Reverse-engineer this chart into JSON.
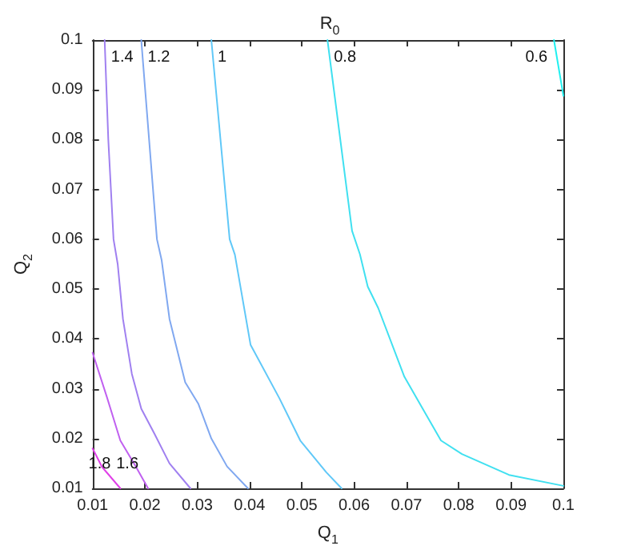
{
  "chart_data": {
    "type": "line",
    "title": "R$_{0}$",
    "xlabel": "Q$_{1}$",
    "ylabel": "Q$_{2}$",
    "xlim": [
      0.01,
      0.1
    ],
    "ylim": [
      0.01,
      0.1
    ],
    "xticks": [
      0.01,
      0.02,
      0.03,
      0.04,
      0.05,
      0.06,
      0.07,
      0.08,
      0.09,
      0.1
    ],
    "yticks": [
      0.01,
      0.02,
      0.03,
      0.04,
      0.05,
      0.06,
      0.07,
      0.08,
      0.09,
      0.1
    ],
    "grid": false,
    "legend": false,
    "marker": "none",
    "line_style": "solid",
    "series": [
      {
        "name": "1.8",
        "color": "#e040e8",
        "x": [
          0.01,
          0.0118,
          0.0153
        ],
        "values": [
          0.018,
          0.0143,
          0.01
        ]
      },
      {
        "name": "1.6",
        "color": "#c060f0",
        "x": [
          0.01,
          0.0128,
          0.0153,
          0.0183,
          0.0206
        ],
        "values": [
          0.0372,
          0.0281,
          0.0196,
          0.0143,
          0.01
        ]
      },
      {
        "name": "1.4",
        "color": "#a080f0",
        "x": [
          0.0287,
          0.0247,
          0.0218,
          0.0193,
          0.0175,
          0.0158,
          0.0148,
          0.014,
          0.013,
          0.0123
        ],
        "values": [
          0.01,
          0.015,
          0.021,
          0.026,
          0.033,
          0.044,
          0.055,
          0.06,
          0.08,
          0.1
        ]
      },
      {
        "name": "1.2",
        "color": "#80a8f0",
        "x": [
          0.0397,
          0.0357,
          0.0327,
          0.0302,
          0.0277,
          0.0247,
          0.0232,
          0.0223,
          0.0193
        ],
        "values": [
          0.01,
          0.0144,
          0.02,
          0.027,
          0.0313,
          0.044,
          0.0558,
          0.06,
          0.1
        ]
      },
      {
        "name": "1",
        "color": "#60c8f8",
        "x": [
          0.0576,
          0.0547,
          0.0497,
          0.0457,
          0.0402,
          0.0372,
          0.0362,
          0.0327
        ],
        "values": [
          0.01,
          0.0132,
          0.0196,
          0.0281,
          0.0388,
          0.0569,
          0.06,
          0.1
        ]
      },
      {
        "name": "0.8",
        "color": "#40e0f0",
        "x": [
          0.1,
          0.0896,
          0.0806,
          0.0766,
          0.0696,
          0.0646,
          0.0626,
          0.0611,
          0.0596,
          0.0549
        ],
        "values": [
          0.0105,
          0.0127,
          0.0169,
          0.0196,
          0.0324,
          0.0462,
          0.0505,
          0.057,
          0.0617,
          0.1
        ]
      },
      {
        "name": "0.6",
        "color": "#20f0f0",
        "x": [
          0.1,
          0.0982
        ],
        "values": [
          0.0888,
          0.1
        ]
      }
    ]
  }
}
